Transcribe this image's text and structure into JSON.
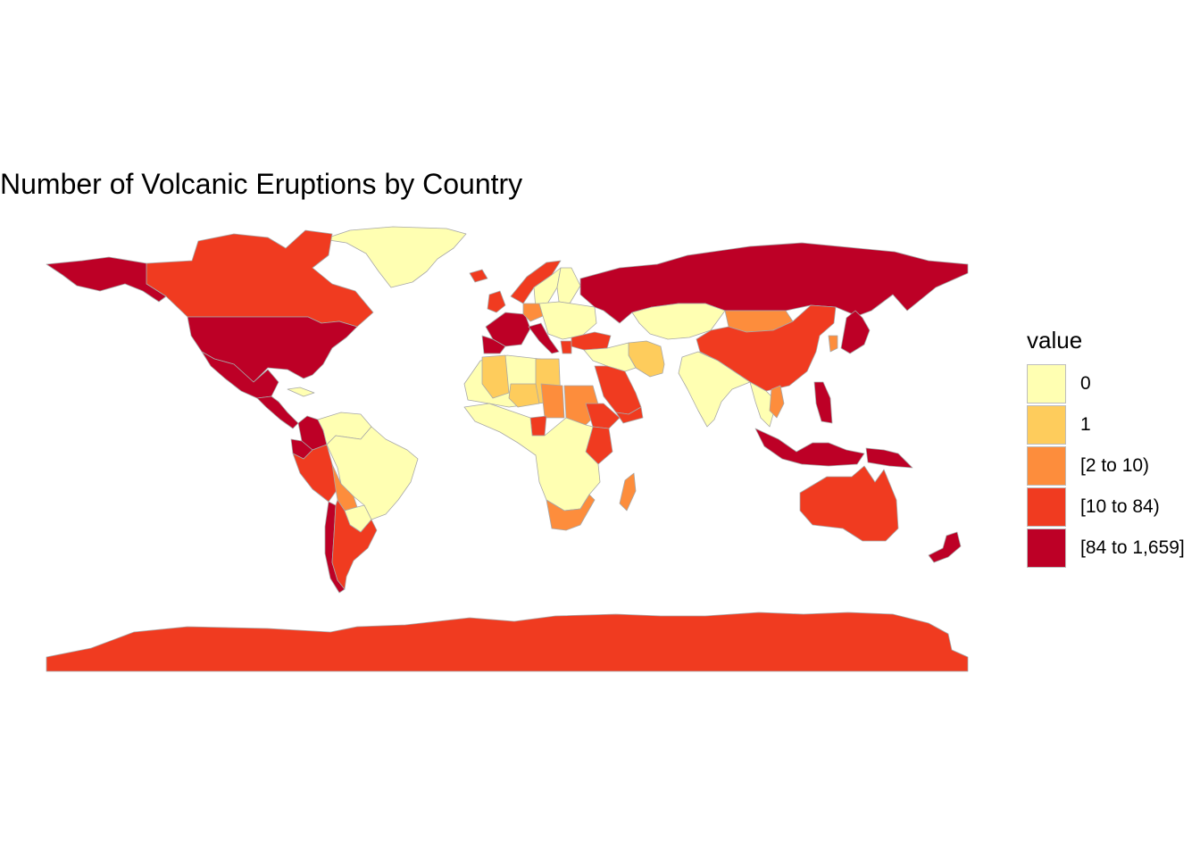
{
  "title": "Number of Volcanic Eruptions by Country",
  "legend": {
    "title": "value",
    "items": [
      {
        "label": "0",
        "color": "#ffffb2"
      },
      {
        "label": "1",
        "color": "#fecc5c"
      },
      {
        "label": "[2 to 10)",
        "color": "#fd8d3c"
      },
      {
        "label": "[10 to 84)",
        "color": "#f03b20"
      },
      {
        "label": "[84 to 1,659]",
        "color": "#bd0026"
      }
    ]
  },
  "style": {
    "border_color": "#a8a8a8"
  },
  "regions": [
    {
      "name": "Greenland",
      "class": 0
    },
    {
      "name": "Canada",
      "class": 3
    },
    {
      "name": "Alaska",
      "class": 4
    },
    {
      "name": "United States",
      "class": 4
    },
    {
      "name": "Mexico",
      "class": 4
    },
    {
      "name": "Central America",
      "class": 4
    },
    {
      "name": "Cuba",
      "class": 0
    },
    {
      "name": "Colombia",
      "class": 4
    },
    {
      "name": "Venezuela",
      "class": 0
    },
    {
      "name": "Ecuador",
      "class": 4
    },
    {
      "name": "Peru",
      "class": 3
    },
    {
      "name": "Brazil",
      "class": 0
    },
    {
      "name": "Bolivia",
      "class": 2
    },
    {
      "name": "Paraguay",
      "class": 0
    },
    {
      "name": "Chile",
      "class": 4
    },
    {
      "name": "Argentina",
      "class": 3
    },
    {
      "name": "Iceland",
      "class": 3
    },
    {
      "name": "Norway",
      "class": 3
    },
    {
      "name": "Sweden",
      "class": 0
    },
    {
      "name": "Finland",
      "class": 0
    },
    {
      "name": "United Kingdom",
      "class": 3
    },
    {
      "name": "France",
      "class": 4
    },
    {
      "name": "Spain",
      "class": 4
    },
    {
      "name": "Germany",
      "class": 2
    },
    {
      "name": "Italy",
      "class": 4
    },
    {
      "name": "Eastern Europe",
      "class": 0
    },
    {
      "name": "Greece",
      "class": 3
    },
    {
      "name": "Turkey",
      "class": 3
    },
    {
      "name": "Russia",
      "class": 4
    },
    {
      "name": "Kazakhstan",
      "class": 0
    },
    {
      "name": "Mongolia",
      "class": 2
    },
    {
      "name": "China",
      "class": 3
    },
    {
      "name": "Japan",
      "class": 4
    },
    {
      "name": "Korea",
      "class": 2
    },
    {
      "name": "Iran",
      "class": 1
    },
    {
      "name": "Middle East",
      "class": 0
    },
    {
      "name": "Saudi Arabia",
      "class": 3
    },
    {
      "name": "Yemen",
      "class": 3
    },
    {
      "name": "India",
      "class": 0
    },
    {
      "name": "Southeast Asia",
      "class": 0
    },
    {
      "name": "Vietnam",
      "class": 2
    },
    {
      "name": "Philippines",
      "class": 4
    },
    {
      "name": "Indonesia",
      "class": 4
    },
    {
      "name": "Papua New Guinea",
      "class": 4
    },
    {
      "name": "Australia",
      "class": 3
    },
    {
      "name": "New Zealand",
      "class": 4
    },
    {
      "name": "North Africa",
      "class": 0
    },
    {
      "name": "Libya",
      "class": 1
    },
    {
      "name": "Algeria",
      "class": 1
    },
    {
      "name": "Niger",
      "class": 1
    },
    {
      "name": "Chad",
      "class": 2
    },
    {
      "name": "Sudan",
      "class": 2
    },
    {
      "name": "Cameroon",
      "class": 3
    },
    {
      "name": "Ethiopia",
      "class": 3
    },
    {
      "name": "Kenya",
      "class": 3
    },
    {
      "name": "Central Africa",
      "class": 0
    },
    {
      "name": "Madagascar",
      "class": 2
    },
    {
      "name": "South Africa",
      "class": 2
    },
    {
      "name": "Antarctica",
      "class": 3
    }
  ]
}
